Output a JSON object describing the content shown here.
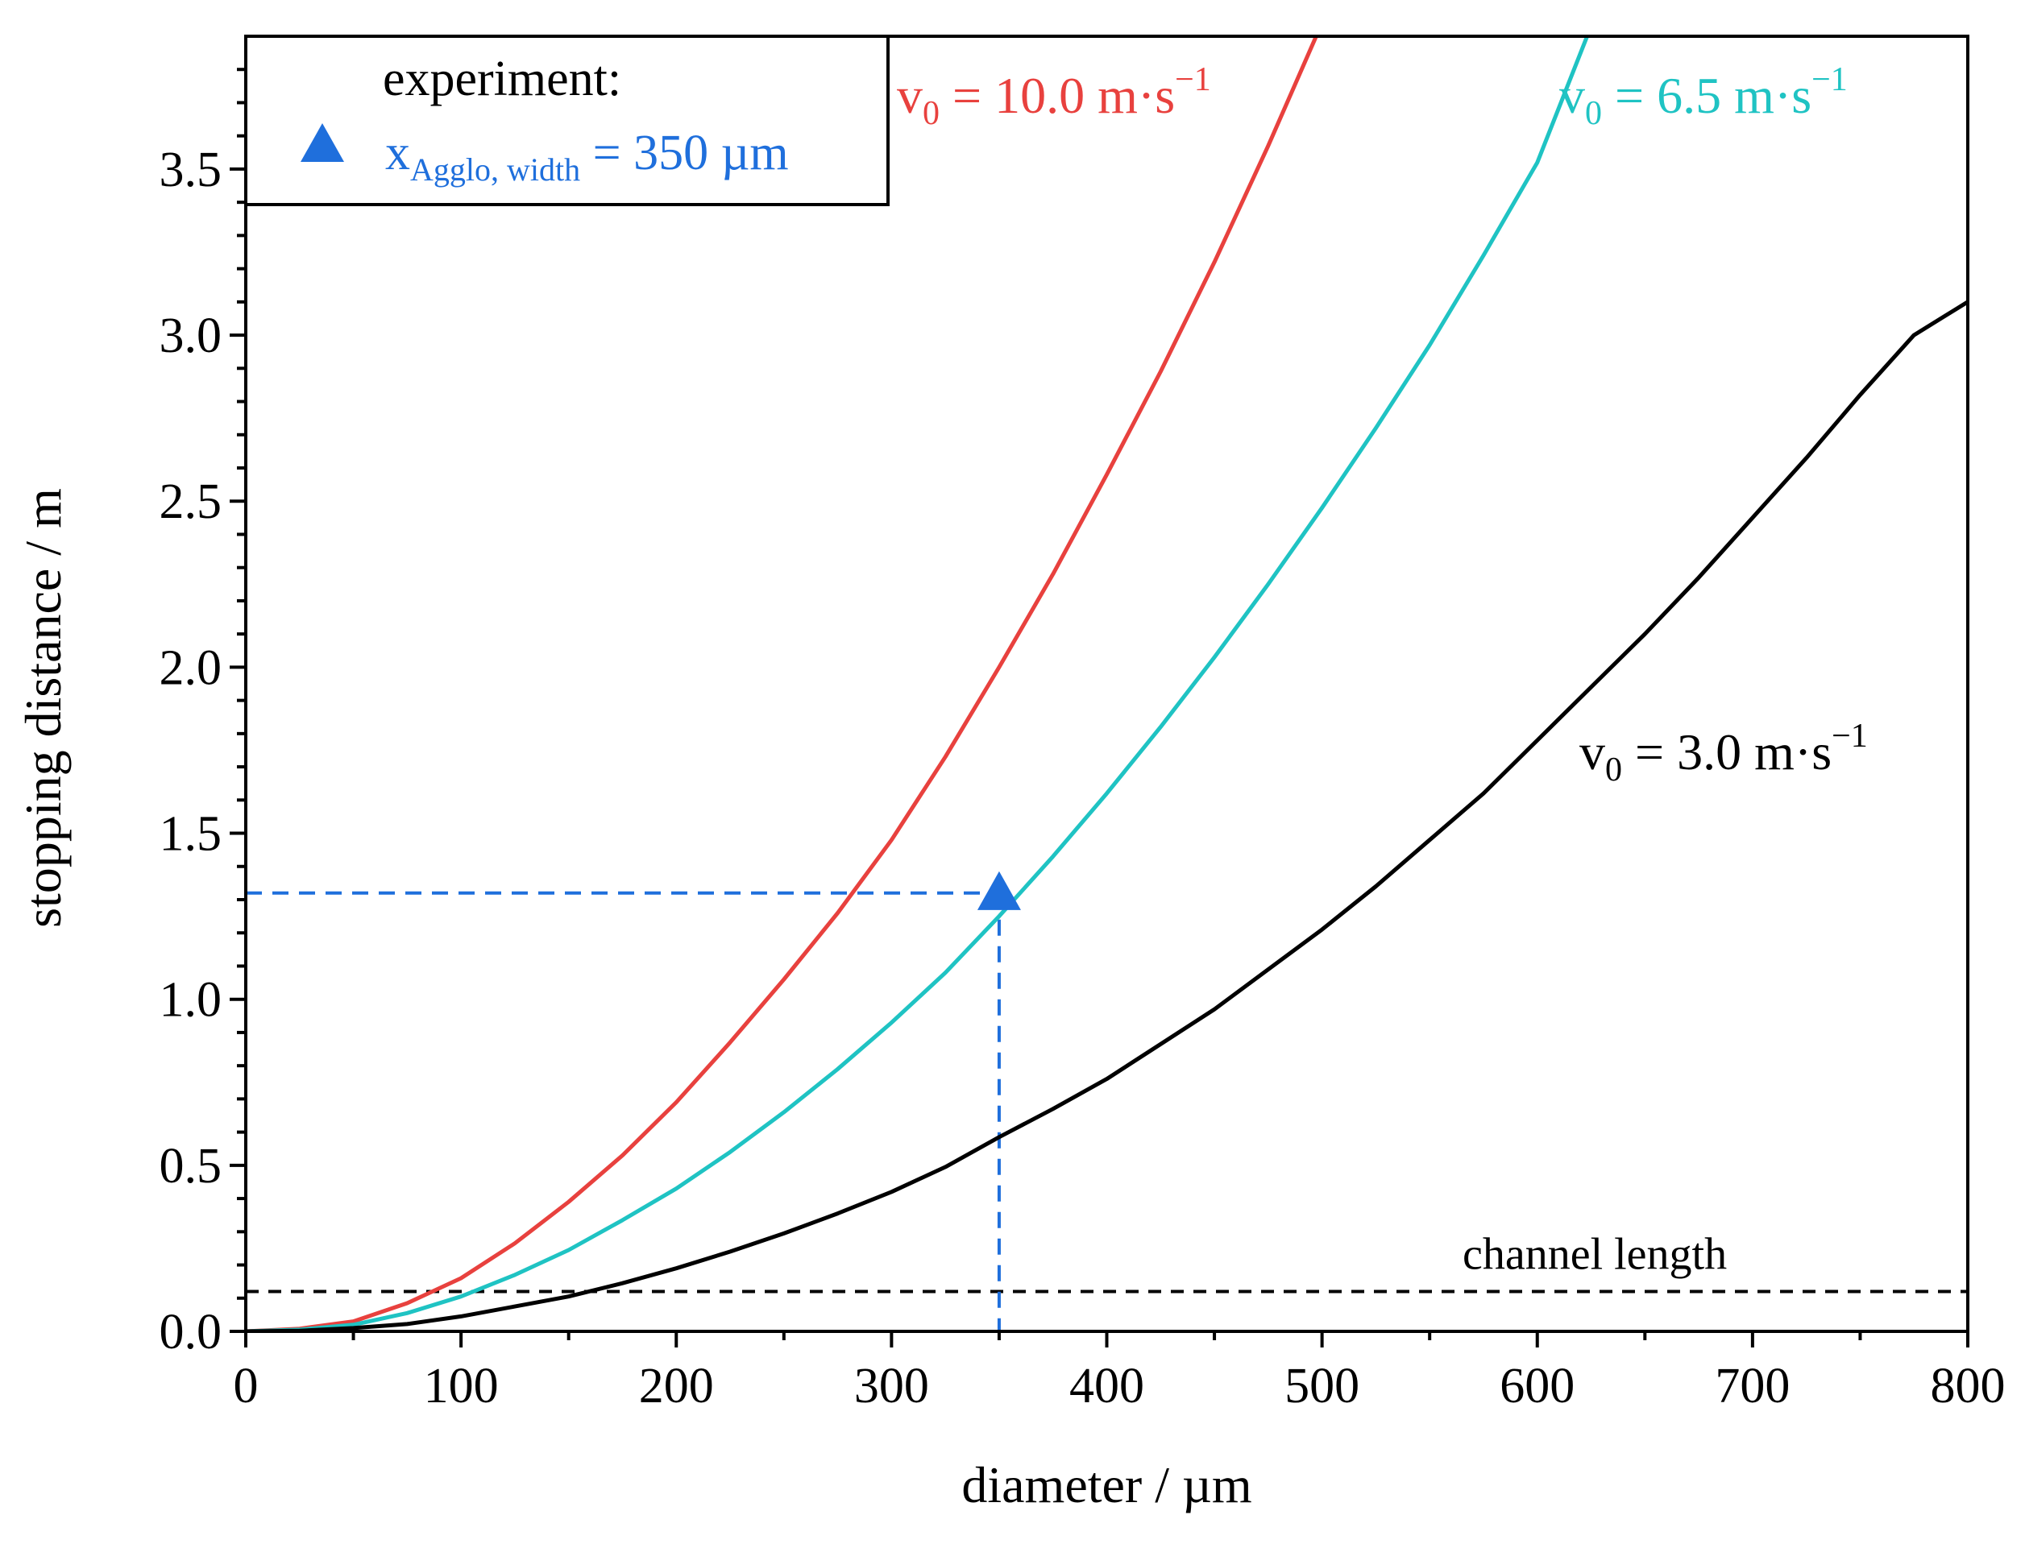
{
  "chart_data": {
    "type": "line",
    "xlabel": "diameter / µm",
    "ylabel": "stopping distance / m",
    "xlim": [
      0,
      800
    ],
    "ylim": [
      0,
      3.9
    ],
    "x_ticks": [
      0,
      100,
      200,
      300,
      400,
      500,
      600,
      700,
      800
    ],
    "x_tick_labels": [
      "0",
      "100",
      "200",
      "300",
      "400",
      "500",
      "600",
      "700",
      "800"
    ],
    "y_ticks": [
      0.0,
      0.5,
      1.0,
      1.5,
      2.0,
      2.5,
      3.0,
      3.5
    ],
    "y_tick_labels": [
      "0.0",
      "0.5",
      "1.0",
      "1.5",
      "2.0",
      "2.5",
      "3.0",
      "3.5"
    ],
    "grid": false,
    "series": [
      {
        "name": "v0 = 10.0 m·s⁻¹",
        "label_main": "v",
        "label_sub": "0",
        "label_rest": " = 10.0 m·s",
        "label_sup": "−1",
        "color": "#e8413e",
        "x": [
          0,
          25,
          50,
          75,
          100,
          125,
          150,
          175,
          200,
          225,
          250,
          275,
          300,
          325,
          350,
          375,
          400,
          425,
          450,
          475,
          500
        ],
        "values": [
          0.0,
          0.008,
          0.03,
          0.085,
          0.16,
          0.265,
          0.39,
          0.53,
          0.69,
          0.87,
          1.06,
          1.26,
          1.48,
          1.73,
          2.0,
          2.28,
          2.58,
          2.89,
          3.22,
          3.57,
          3.94
        ]
      },
      {
        "name": "v0 = 6.5 m·s⁻¹",
        "label_main": "v",
        "label_sub": "0",
        "label_rest": " =  6.5 m·s",
        "label_sup": "−1",
        "color": "#1fc3c3",
        "x": [
          0,
          25,
          50,
          75,
          100,
          125,
          150,
          175,
          200,
          225,
          250,
          275,
          300,
          325,
          350,
          375,
          400,
          425,
          450,
          475,
          500,
          525,
          550,
          575,
          600,
          625
        ],
        "values": [
          0.0,
          0.005,
          0.02,
          0.055,
          0.105,
          0.17,
          0.245,
          0.335,
          0.43,
          0.54,
          0.66,
          0.79,
          0.93,
          1.08,
          1.25,
          1.43,
          1.62,
          1.82,
          2.03,
          2.25,
          2.48,
          2.72,
          2.97,
          3.24,
          3.52,
          3.93
        ]
      },
      {
        "name": "v0 = 3.0 m·s⁻¹",
        "label_main": "v",
        "label_sub": "0",
        "label_rest": " =  3.0 m·s",
        "label_sup": "−1",
        "color": "#000000",
        "x": [
          0,
          25,
          50,
          75,
          100,
          125,
          150,
          175,
          200,
          225,
          250,
          275,
          300,
          325,
          350,
          375,
          400,
          425,
          450,
          475,
          500,
          525,
          550,
          575,
          600,
          625,
          650,
          675,
          700,
          725,
          750,
          775,
          800
        ],
        "values": [
          0.0,
          0.002,
          0.01,
          0.022,
          0.045,
          0.075,
          0.105,
          0.145,
          0.19,
          0.24,
          0.295,
          0.355,
          0.42,
          0.495,
          0.585,
          0.67,
          0.76,
          0.865,
          0.97,
          1.09,
          1.21,
          1.34,
          1.48,
          1.62,
          1.78,
          1.94,
          2.1,
          2.27,
          2.45,
          2.63,
          2.82,
          3.0,
          3.1
        ]
      }
    ],
    "reference_line": {
      "label": "channel length",
      "y": 0.12,
      "color": "#000000",
      "style": "dashed"
    },
    "experiment_point": {
      "x": 350,
      "y": 1.32,
      "marker": "triangle",
      "color": "#1f6fdc",
      "guide_style": "dashed"
    },
    "legend": {
      "position": "top-left",
      "title": "experiment:",
      "entry_main": "x",
      "entry_sub": "Agglo, width",
      "entry_rest": " = 350 µm",
      "entry_color": "#1f6fdc"
    }
  }
}
